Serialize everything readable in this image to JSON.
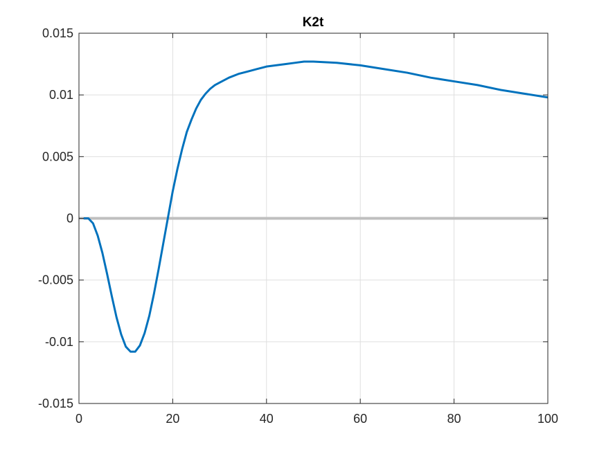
{
  "chart_data": {
    "type": "line",
    "title": "K2t",
    "xlabel": "",
    "ylabel": "",
    "xlim": [
      0,
      100
    ],
    "ylim": [
      -0.015,
      0.015
    ],
    "xticks": [
      0,
      20,
      40,
      60,
      80,
      100
    ],
    "xtick_labels": [
      "0",
      "20",
      "40",
      "60",
      "80",
      "100"
    ],
    "yticks": [
      0.015,
      0.01,
      0.005,
      0,
      -0.005,
      -0.01,
      -0.015
    ],
    "ytick_labels": [
      "0.015",
      "0.01",
      "0.005",
      "0",
      "-0.005",
      "-0.01",
      "-0.015"
    ],
    "grid": true,
    "legend": "none",
    "series": [
      {
        "color": "#0072BD",
        "x": [
          1,
          2,
          3,
          4,
          5,
          6,
          7,
          8,
          9,
          10,
          11,
          12,
          13,
          14,
          15,
          16,
          17,
          18,
          19,
          20,
          21,
          22,
          23,
          24,
          25,
          26,
          27,
          28,
          29,
          30,
          32,
          34,
          36,
          38,
          40,
          42,
          44,
          46,
          48,
          50,
          55,
          60,
          65,
          70,
          75,
          80,
          85,
          90,
          95,
          100
        ],
        "y": [
          0,
          0,
          -0.0004,
          -0.0014,
          -0.0028,
          -0.0045,
          -0.0063,
          -0.008,
          -0.0094,
          -0.0104,
          -0.0108,
          -0.0108,
          -0.0103,
          -0.0093,
          -0.0079,
          -0.0061,
          -0.0041,
          -0.002,
          0.0001,
          0.0022,
          0.004,
          0.0056,
          0.007,
          0.008,
          0.0089,
          0.0096,
          0.0101,
          0.0105,
          0.0108,
          0.011,
          0.0114,
          0.0117,
          0.0119,
          0.0121,
          0.0123,
          0.0124,
          0.0125,
          0.0126,
          0.0127,
          0.0127,
          0.0126,
          0.0124,
          0.0121,
          0.0118,
          0.0114,
          0.0111,
          0.0108,
          0.0104,
          0.0101,
          0.0098
        ]
      },
      {
        "color": "#BFBFBF",
        "x": [
          0,
          100
        ],
        "y": [
          0,
          0
        ]
      }
    ]
  }
}
